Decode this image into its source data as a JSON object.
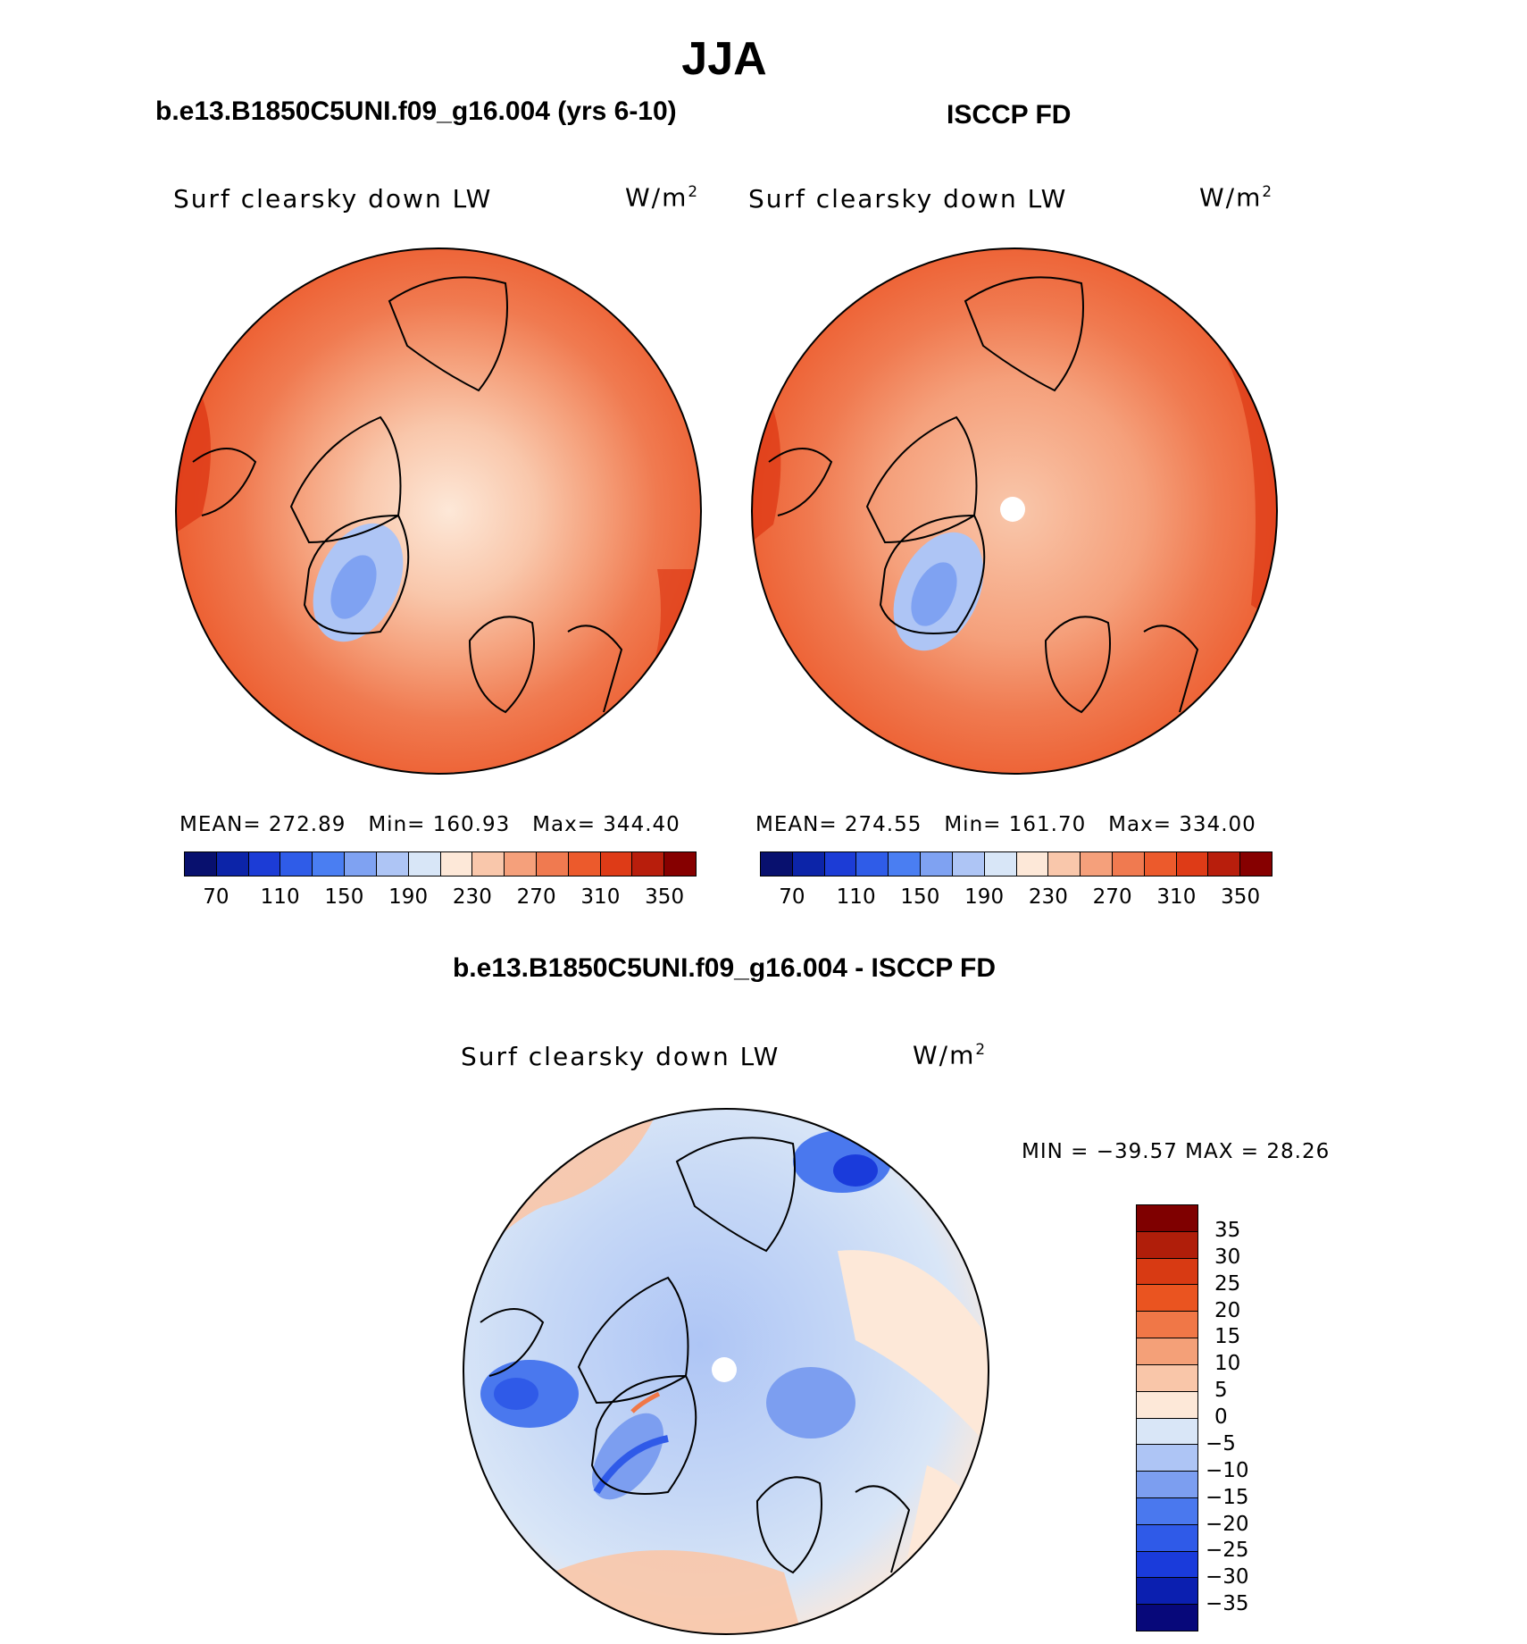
{
  "titles": {
    "season": "JJA",
    "left": "b.e13.B1850C5UNI.f09_g16.004 (yrs 6-10)",
    "right": "ISCCP FD",
    "diff": "b.e13.B1850C5UNI.f09_g16.004 - ISCCP FD"
  },
  "panels": {
    "left": {
      "variable": "Surf clearsky down LW",
      "units": "W/m",
      "units_exp": "2",
      "stats": {
        "mean_label": "MEAN=",
        "mean": "272.89",
        "min_label": "Min=",
        "min": "160.93",
        "max_label": "Max=",
        "max": "344.40"
      }
    },
    "right": {
      "variable": "Surf clearsky down LW",
      "units": "W/m",
      "units_exp": "2",
      "stats": {
        "mean_label": "MEAN=",
        "mean": "274.55",
        "min_label": "Min=",
        "min": "161.70",
        "max_label": "Max=",
        "max": "334.00"
      }
    },
    "diff": {
      "variable": "Surf clearsky down LW",
      "units": "W/m",
      "units_exp": "2",
      "stats": {
        "text": "MIN = −39.57 MAX =   28.26"
      }
    }
  },
  "colorbars": {
    "abs": {
      "colors": [
        "#08106e",
        "#0c24a8",
        "#1c3cd6",
        "#2f5ce8",
        "#4a7ef2",
        "#7fa2f2",
        "#aec5f5",
        "#d8e6f7",
        "#fde8d8",
        "#f9c7ab",
        "#f5a07b",
        "#f07a50",
        "#ec5a2c",
        "#de3b17",
        "#b81e0c",
        "#860000"
      ],
      "ticks": [
        "70",
        "110",
        "150",
        "190",
        "230",
        "270",
        "310",
        "350"
      ]
    },
    "diff": {
      "colors": [
        "#07087a",
        "#0b1fb0",
        "#1a3bdb",
        "#2f5ae8",
        "#4a78ee",
        "#7c9ef0",
        "#aec5f5",
        "#d9e6f7",
        "#fde8d8",
        "#f9c6a9",
        "#f4a078",
        "#f07747",
        "#ea5420",
        "#d83a13",
        "#b01e0a",
        "#7f0000"
      ],
      "ticks": [
        "35",
        "30",
        "25",
        "20",
        "15",
        "10",
        "5",
        "0",
        "−5",
        "−10",
        "−15",
        "−20",
        "−25",
        "−30",
        "−35"
      ]
    }
  }
}
